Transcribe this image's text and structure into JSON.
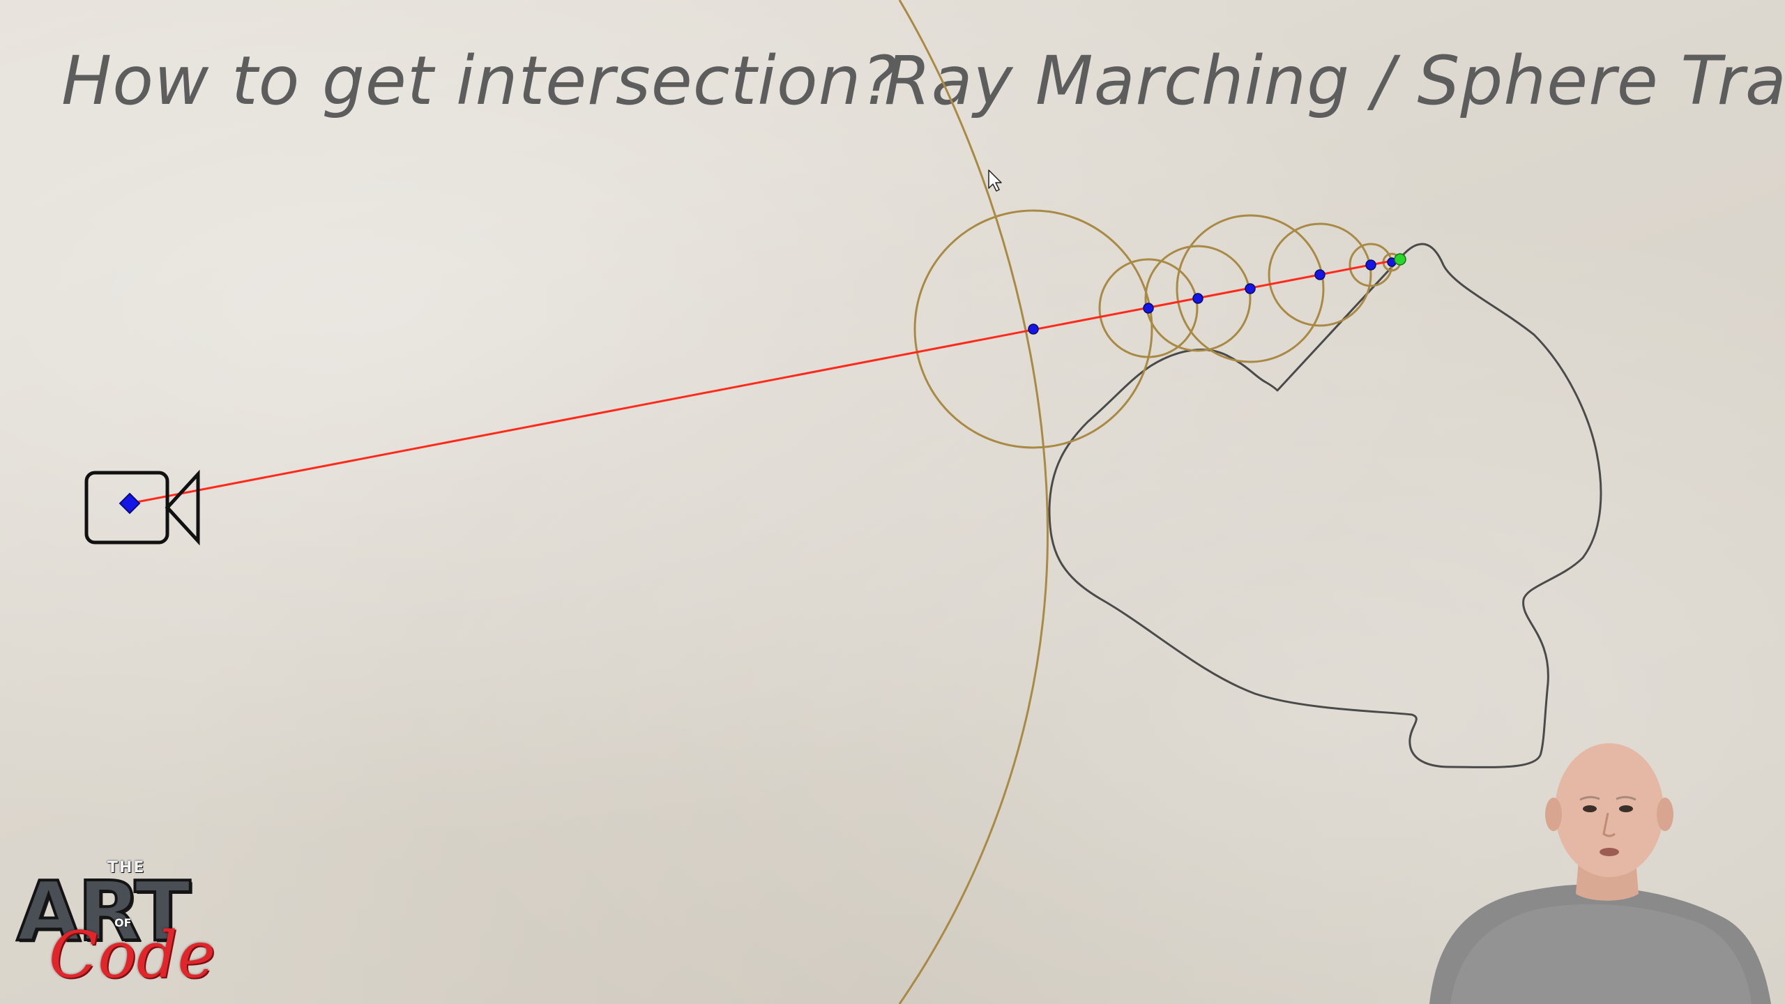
{
  "titles": {
    "left": "How to get intersection?",
    "right": "Ray Marching / Sphere Tracing"
  },
  "logo": {
    "the": "THE",
    "art": "ART",
    "of": "OF",
    "code": "Code"
  },
  "colors": {
    "ray": "#ff2a1a",
    "circle": "#a98a45",
    "step_point": "#1515e8",
    "hit_point": "#2bd62b",
    "surface": "#4a4a4a",
    "camera": "#111111",
    "title_text": "#5d5d5d"
  },
  "icons": {
    "camera": "video-camera-icon",
    "cursor": "mouse-pointer-icon"
  }
}
